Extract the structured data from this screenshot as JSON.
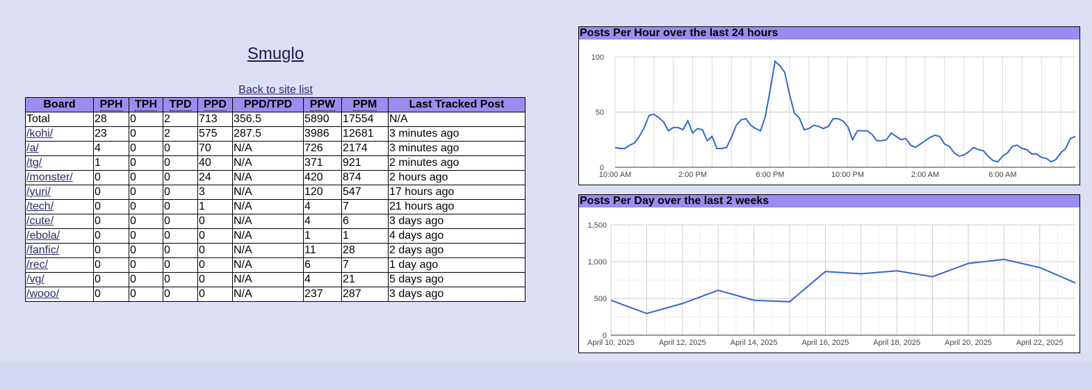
{
  "site": {
    "title": "Smuglo",
    "back_link": "Back to site list"
  },
  "table": {
    "headers": [
      "Board",
      "PPH",
      "TPH",
      "TPD",
      "PPD",
      "PPD/TPD",
      "PPW",
      "PPM",
      "Last Tracked Post"
    ],
    "rows": [
      [
        "Total",
        "28",
        "0",
        "2",
        "713",
        "356.5",
        "5890",
        "17554",
        "N/A"
      ],
      [
        "/kohi/",
        "23",
        "0",
        "2",
        "575",
        "287.5",
        "3986",
        "12681",
        "3 minutes ago"
      ],
      [
        "/a/",
        "4",
        "0",
        "0",
        "70",
        "N/A",
        "726",
        "2174",
        "3 minutes ago"
      ],
      [
        "/tg/",
        "1",
        "0",
        "0",
        "40",
        "N/A",
        "371",
        "921",
        "2 minutes ago"
      ],
      [
        "/monster/",
        "0",
        "0",
        "0",
        "24",
        "N/A",
        "420",
        "874",
        "2 hours ago"
      ],
      [
        "/yuri/",
        "0",
        "0",
        "0",
        "3",
        "N/A",
        "120",
        "547",
        "17 hours ago"
      ],
      [
        "/tech/",
        "0",
        "0",
        "0",
        "1",
        "N/A",
        "4",
        "7",
        "21 hours ago"
      ],
      [
        "/cute/",
        "0",
        "0",
        "0",
        "0",
        "N/A",
        "4",
        "6",
        "3 days ago"
      ],
      [
        "/ebola/",
        "0",
        "0",
        "0",
        "0",
        "N/A",
        "1",
        "1",
        "4 days ago"
      ],
      [
        "/fanfic/",
        "0",
        "0",
        "0",
        "0",
        "N/A",
        "11",
        "28",
        "2 days ago"
      ],
      [
        "/rec/",
        "0",
        "0",
        "0",
        "0",
        "N/A",
        "6",
        "7",
        "1 day ago"
      ],
      [
        "/vg/",
        "0",
        "0",
        "0",
        "0",
        "N/A",
        "4",
        "21",
        "5 days ago"
      ],
      [
        "/wooo/",
        "0",
        "0",
        "0",
        "0",
        "N/A",
        "237",
        "287",
        "3 days ago"
      ]
    ]
  },
  "chart_data": [
    {
      "type": "line",
      "title": "Posts Per Hour over the last 24 hours",
      "x_start_hour": 10,
      "x_tick_labels": [
        "10:00 AM",
        "2:00 PM",
        "6:00 PM",
        "10:00 PM",
        "2:00 AM",
        "6:00 AM"
      ],
      "y_ticks": [
        0,
        50,
        100
      ],
      "ylim": [
        0,
        100
      ],
      "line_color": "#3366cc",
      "values": [
        18,
        17,
        17,
        20,
        22,
        28,
        36,
        47,
        48,
        45,
        41,
        33,
        36,
        36,
        34,
        42,
        31,
        35,
        34,
        24,
        28,
        17,
        17,
        18,
        27,
        38,
        43,
        44,
        38,
        35,
        33,
        46,
        70,
        96,
        92,
        86,
        66,
        49,
        45,
        34,
        35,
        38,
        37,
        35,
        37,
        44,
        44,
        42,
        37,
        25,
        33,
        33,
        33,
        30,
        24,
        24,
        25,
        31,
        28,
        25,
        26,
        20,
        18,
        21,
        24,
        27,
        29,
        28,
        21,
        19,
        13,
        10,
        11,
        14,
        18,
        16,
        15,
        10,
        6,
        5,
        10,
        13,
        19,
        20,
        17,
        16,
        12,
        12,
        9,
        8,
        5,
        7,
        13,
        17,
        26,
        28
      ]
    },
    {
      "type": "line",
      "title": "Posts Per Day over the last 2 weeks",
      "x": [
        "April 10, 2025",
        "April 11, 2025",
        "April 12, 2025",
        "April 13, 2025",
        "April 14, 2025",
        "April 15, 2025",
        "April 16, 2025",
        "April 17, 2025",
        "April 18, 2025",
        "April 19, 2025",
        "April 20, 2025",
        "April 21, 2025",
        "April 22, 2025",
        "April 23, 2025"
      ],
      "x_tick_labels": [
        "April 10, 2025",
        "April 12, 2025",
        "April 14, 2025",
        "April 16, 2025",
        "April 18, 2025",
        "April 20, 2025",
        "April 22, 2025"
      ],
      "y_ticks": [
        0,
        500,
        1000,
        1500
      ],
      "y_tick_labels": [
        "0",
        "500",
        "1,000",
        "1,500"
      ],
      "ylim": [
        0,
        1500
      ],
      "line_color": "#3366cc",
      "values": [
        475,
        295,
        430,
        610,
        475,
        455,
        865,
        835,
        875,
        795,
        975,
        1030,
        920,
        710
      ]
    }
  ]
}
